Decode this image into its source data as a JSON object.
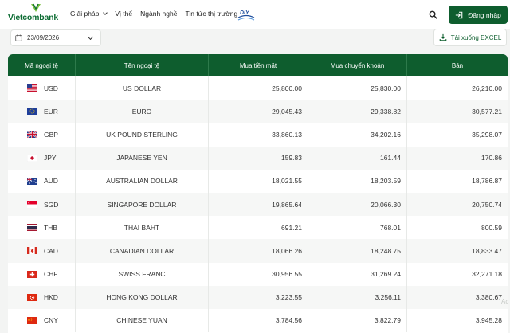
{
  "header": {
    "logo_text": "Vietcombank",
    "nav": [
      {
        "label": "Giải pháp",
        "has_dropdown": true
      },
      {
        "label": "Vị thế",
        "has_dropdown": false
      },
      {
        "label": "Ngành nghề",
        "has_dropdown": false
      },
      {
        "label": "Tin tức thị trường",
        "has_dropdown": false
      }
    ],
    "badge_text": "DIY",
    "login_label": "Đăng nhập"
  },
  "controls": {
    "date_value": "23/09/2026",
    "excel_label": "Tải xuống EXCEL"
  },
  "table": {
    "columns": [
      "Mã ngoại tệ",
      "Tên ngoại tệ",
      "Mua tiền mặt",
      "Mua chuyển khoản",
      "Bán"
    ],
    "rows": [
      {
        "code": "USD",
        "name": "US DOLLAR",
        "cash_buy": "25,800.00",
        "transfer_buy": "25,830.00",
        "sell": "26,210.00",
        "flag": "us-flag"
      },
      {
        "code": "EUR",
        "name": "EURO",
        "cash_buy": "29,045.43",
        "transfer_buy": "29,338.82",
        "sell": "30,577.21",
        "flag": "eu-flag"
      },
      {
        "code": "GBP",
        "name": "UK POUND STERLING",
        "cash_buy": "33,860.13",
        "transfer_buy": "34,202.16",
        "sell": "35,298.07",
        "flag": "gb-flag"
      },
      {
        "code": "JPY",
        "name": "JAPANESE YEN",
        "cash_buy": "159.83",
        "transfer_buy": "161.44",
        "sell": "170.86",
        "flag": "jp-flag"
      },
      {
        "code": "AUD",
        "name": "AUSTRALIAN DOLLAR",
        "cash_buy": "18,021.55",
        "transfer_buy": "18,203.59",
        "sell": "18,786.87",
        "flag": "au-flag"
      },
      {
        "code": "SGD",
        "name": "SINGAPORE DOLLAR",
        "cash_buy": "19,865.64",
        "transfer_buy": "20,066.30",
        "sell": "20,750.74",
        "flag": "sg-flag"
      },
      {
        "code": "THB",
        "name": "THAI BAHT",
        "cash_buy": "691.21",
        "transfer_buy": "768.01",
        "sell": "800.59",
        "flag": "th-flag"
      },
      {
        "code": "CAD",
        "name": "CANADIAN DOLLAR",
        "cash_buy": "18,066.26",
        "transfer_buy": "18,248.75",
        "sell": "18,833.47",
        "flag": "ca-flag"
      },
      {
        "code": "CHF",
        "name": "SWISS FRANC",
        "cash_buy": "30,956.55",
        "transfer_buy": "31,269.24",
        "sell": "32,271.18",
        "flag": "ch-flag"
      },
      {
        "code": "HKD",
        "name": "HONG KONG DOLLAR",
        "cash_buy": "3,223.55",
        "transfer_buy": "3,256.11",
        "sell": "3,380.67",
        "flag": "hk-flag"
      },
      {
        "code": "CNY",
        "name": "CHINESE YUAN",
        "cash_buy": "3,784.56",
        "transfer_buy": "3,822.79",
        "sell": "3,945.28",
        "flag": "cn-flag"
      }
    ]
  },
  "watermark_text": "Ac",
  "colors": {
    "brand_green": "#0e5d2e",
    "logo_green": "#0b6b32",
    "page_bg": "#f3f4f3"
  }
}
